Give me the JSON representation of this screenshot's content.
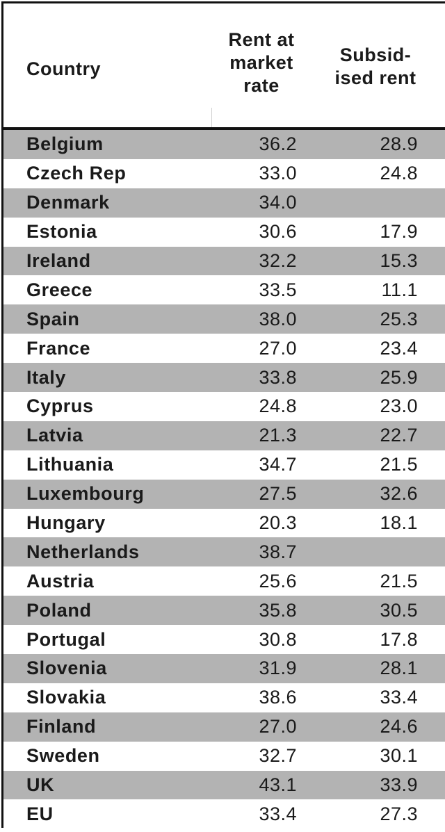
{
  "table": {
    "headers": {
      "country": "Country",
      "market": "Rent at\nmarket\nrate",
      "subsidised": "Subsid-\nised rent"
    },
    "rows": [
      {
        "country": "Belgium",
        "market": "36.2",
        "subsidised": "28.9"
      },
      {
        "country": "Czech Rep",
        "market": "33.0",
        "subsidised": "24.8"
      },
      {
        "country": "Denmark",
        "market": "34.0",
        "subsidised": ""
      },
      {
        "country": "Estonia",
        "market": "30.6",
        "subsidised": "17.9"
      },
      {
        "country": "Ireland",
        "market": "32.2",
        "subsidised": "15.3"
      },
      {
        "country": "Greece",
        "market": "33.5",
        "subsidised": "11.1"
      },
      {
        "country": "Spain",
        "market": "38.0",
        "subsidised": "25.3"
      },
      {
        "country": "France",
        "market": "27.0",
        "subsidised": "23.4"
      },
      {
        "country": "Italy",
        "market": "33.8",
        "subsidised": "25.9"
      },
      {
        "country": "Cyprus",
        "market": "24.8",
        "subsidised": "23.0"
      },
      {
        "country": "Latvia",
        "market": "21.3",
        "subsidised": "22.7"
      },
      {
        "country": "Lithuania",
        "market": "34.7",
        "subsidised": "21.5"
      },
      {
        "country": "Luxembourg",
        "market": "27.5",
        "subsidised": "32.6"
      },
      {
        "country": "Hungary",
        "market": "20.3",
        "subsidised": "18.1"
      },
      {
        "country": "Netherlands",
        "market": "38.7",
        "subsidised": ""
      },
      {
        "country": "Austria",
        "market": "25.6",
        "subsidised": "21.5"
      },
      {
        "country": "Poland",
        "market": "35.8",
        "subsidised": "30.5"
      },
      {
        "country": "Portugal",
        "market": "30.8",
        "subsidised": "17.8"
      },
      {
        "country": "Slovenia",
        "market": "31.9",
        "subsidised": "28.1"
      },
      {
        "country": "Slovakia",
        "market": "38.6",
        "subsidised": "33.4"
      },
      {
        "country": "Finland",
        "market": "27.0",
        "subsidised": "24.6"
      },
      {
        "country": "Sweden",
        "market": "32.7",
        "subsidised": "30.1"
      },
      {
        "country": "UK",
        "market": "43.1",
        "subsidised": "33.9"
      },
      {
        "country": "EU",
        "market": "33.4",
        "subsidised": "27.3"
      }
    ]
  },
  "colors": {
    "shaded_row": "#b3b3b3",
    "plain_row": "#ffffff",
    "rule": "#111111"
  }
}
